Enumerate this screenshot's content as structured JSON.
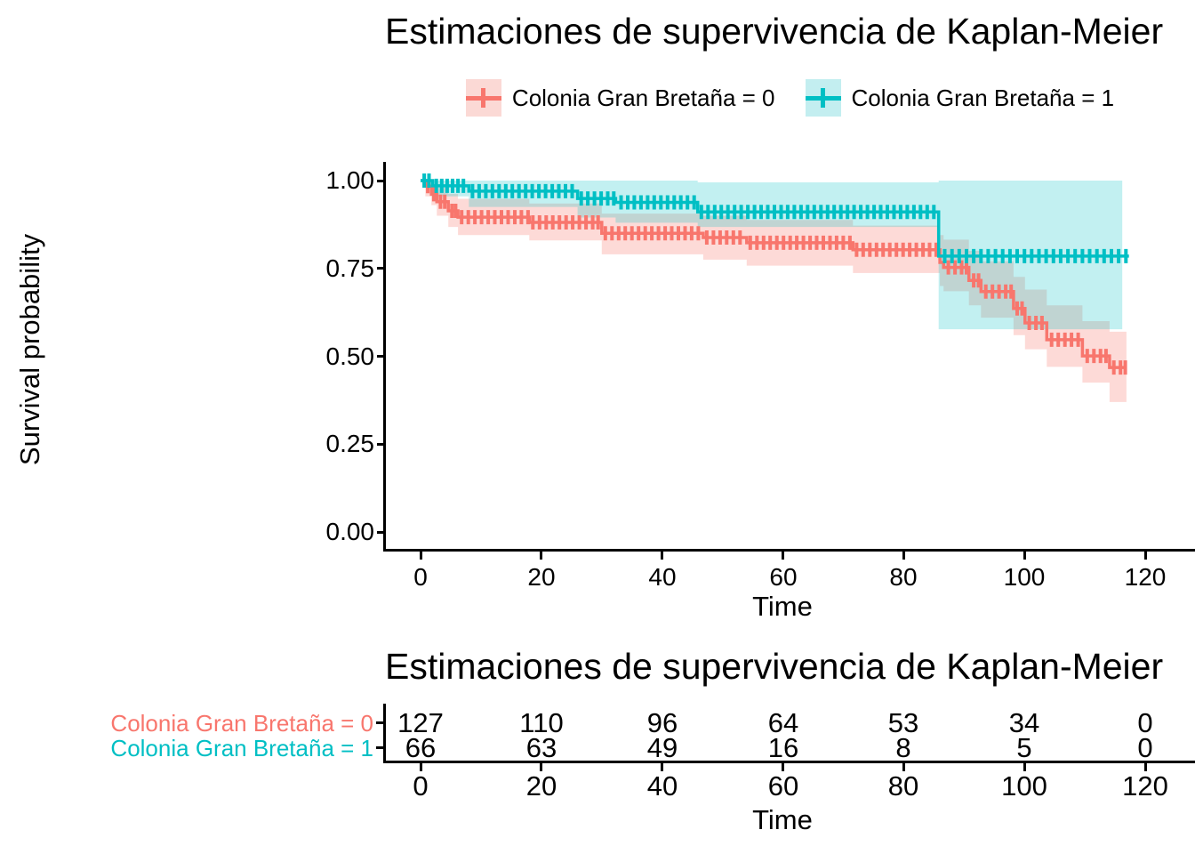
{
  "chart_data": {
    "type": "line",
    "subtype": "kaplan-meier-step",
    "title": "Estimaciones de supervivencia de Kaplan-Meier",
    "xlabel": "Time",
    "ylabel": "Survival probability",
    "xlim": [
      0,
      120
    ],
    "ylim": [
      0.0,
      1.0
    ],
    "grid": false,
    "x_ticks": [
      {
        "v": 0,
        "label": "0"
      },
      {
        "v": 20,
        "label": "20"
      },
      {
        "v": 40,
        "label": "40"
      },
      {
        "v": 60,
        "label": "60"
      },
      {
        "v": 80,
        "label": "80"
      },
      {
        "v": 100,
        "label": "100"
      },
      {
        "v": 120,
        "label": "120"
      }
    ],
    "y_ticks": [
      {
        "v": 1.0,
        "label": "1.00"
      },
      {
        "v": 0.75,
        "label": "0.75"
      },
      {
        "v": 0.5,
        "label": "0.50"
      },
      {
        "v": 0.25,
        "label": "0.25"
      },
      {
        "v": 0.0,
        "label": "0.00"
      }
    ],
    "legend": {
      "position": "top",
      "items": [
        {
          "label": "Colonia Gran Bretaña = 0",
          "color": "#F8766D",
          "fill": "#FBD9D5"
        },
        {
          "label": "Colonia Gran Bretaña = 1",
          "color": "#00BFC4",
          "fill": "#C3EEF0"
        }
      ]
    },
    "series": [
      {
        "name": "Colonia Gran Bretaña = 0",
        "color": "#F8766D",
        "band_alpha": 0.27,
        "steps": [
          [
            0,
            1.0
          ],
          [
            0.8,
            0.984
          ],
          [
            1.8,
            0.961
          ],
          [
            2.7,
            0.94
          ],
          [
            4.6,
            0.914
          ],
          [
            6.2,
            0.896
          ],
          [
            18,
            0.881
          ],
          [
            30,
            0.85
          ],
          [
            46.8,
            0.838
          ],
          [
            54,
            0.823
          ],
          [
            71.6,
            0.803
          ],
          [
            86,
            0.767
          ],
          [
            86.6,
            0.753
          ],
          [
            90.8,
            0.716
          ],
          [
            92.8,
            0.684
          ],
          [
            98.2,
            0.636
          ],
          [
            100.1,
            0.595
          ],
          [
            103.7,
            0.547
          ],
          [
            109.6,
            0.501
          ],
          [
            114.1,
            0.468
          ],
          [
            116.9,
            0.468
          ]
        ],
        "ci": [
          [
            0,
            1.0,
            1.0
          ],
          [
            0.8,
            0.955,
            0.998
          ],
          [
            1.8,
            0.93,
            0.99
          ],
          [
            2.7,
            0.9,
            0.98
          ],
          [
            4.6,
            0.868,
            0.962
          ],
          [
            6.2,
            0.845,
            0.948
          ],
          [
            18,
            0.83,
            0.935
          ],
          [
            30,
            0.79,
            0.906
          ],
          [
            46.8,
            0.775,
            0.9
          ],
          [
            54,
            0.758,
            0.888
          ],
          [
            71.6,
            0.737,
            0.872
          ],
          [
            86,
            0.7,
            0.845
          ],
          [
            86.6,
            0.685,
            0.832
          ],
          [
            90.8,
            0.645,
            0.8
          ],
          [
            92.8,
            0.61,
            0.77
          ],
          [
            98.2,
            0.56,
            0.726
          ],
          [
            100.1,
            0.52,
            0.69
          ],
          [
            103.7,
            0.47,
            0.645
          ],
          [
            109.6,
            0.425,
            0.6
          ],
          [
            114.1,
            0.37,
            0.57
          ],
          [
            116.9,
            0.37,
            0.57
          ]
        ],
        "censor_times": [
          1.2,
          2.2,
          3.3,
          4.0,
          5.2,
          5.8,
          6.8,
          7.9,
          9.0,
          10.1,
          11.2,
          12.3,
          13.4,
          14.5,
          15.6,
          16.7,
          17.8,
          18.6,
          19.7,
          20.8,
          21.9,
          23.0,
          24.1,
          25.2,
          26.3,
          27.4,
          28.5,
          29.4,
          30.6,
          31.7,
          32.8,
          33.9,
          35.0,
          36.1,
          37.2,
          38.3,
          39.4,
          40.5,
          41.6,
          42.7,
          43.8,
          44.9,
          46.0,
          47.4,
          48.5,
          49.6,
          50.7,
          51.8,
          52.9,
          54.6,
          55.7,
          56.8,
          57.9,
          59.0,
          60.1,
          61.2,
          62.3,
          63.4,
          64.5,
          65.6,
          66.7,
          67.8,
          68.9,
          70.0,
          71.1,
          72.2,
          73.3,
          74.4,
          75.5,
          76.6,
          77.7,
          78.8,
          79.9,
          81.0,
          82.1,
          83.2,
          84.3,
          85.4,
          87.4,
          88.5,
          89.6,
          90.4,
          91.6,
          92.4,
          93.6,
          94.7,
          95.8,
          96.9,
          97.8,
          98.8,
          99.6,
          100.8,
          101.9,
          102.9,
          104.5,
          105.6,
          106.7,
          107.8,
          108.9,
          110.4,
          111.5,
          112.6,
          113.5,
          114.8,
          115.9,
          116.7
        ]
      },
      {
        "name": "Colonia Gran Bretaña = 1",
        "color": "#00BFC4",
        "band_alpha": 0.24,
        "steps": [
          [
            0,
            1.0
          ],
          [
            2,
            0.985
          ],
          [
            8,
            0.97
          ],
          [
            26,
            0.949
          ],
          [
            32.3,
            0.938
          ],
          [
            45.9,
            0.911
          ],
          [
            85.8,
            0.785
          ],
          [
            117.3,
            0.785
          ]
        ],
        "ci": [
          [
            0,
            1.0,
            1.0
          ],
          [
            2,
            0.955,
            1.0
          ],
          [
            8,
            0.925,
            1.0
          ],
          [
            26,
            0.895,
            1.0
          ],
          [
            32.3,
            0.88,
            1.0
          ],
          [
            45.9,
            0.868,
            0.995
          ],
          [
            85.8,
            0.577,
            1.0
          ],
          [
            116.2,
            0.577,
            1.0
          ]
        ],
        "censor_times": [
          0.6,
          1.4,
          2.6,
          3.5,
          4.4,
          5.3,
          6.2,
          7.1,
          8.6,
          9.7,
          10.8,
          11.9,
          13.0,
          14.1,
          15.2,
          16.3,
          17.4,
          18.5,
          19.6,
          20.7,
          21.8,
          22.9,
          24.0,
          25.1,
          26.6,
          27.7,
          28.8,
          29.9,
          31.0,
          32.0,
          33.2,
          34.3,
          35.4,
          36.5,
          37.6,
          38.7,
          39.8,
          40.9,
          42.0,
          43.1,
          44.2,
          45.3,
          46.5,
          47.6,
          48.7,
          49.8,
          50.9,
          52.0,
          53.1,
          54.2,
          55.3,
          56.4,
          57.5,
          58.6,
          59.7,
          60.8,
          61.9,
          63.0,
          64.1,
          65.2,
          66.3,
          67.4,
          68.5,
          69.6,
          70.7,
          71.8,
          72.9,
          74.0,
          75.1,
          76.2,
          77.3,
          78.4,
          79.5,
          80.6,
          81.7,
          82.8,
          83.9,
          85.0,
          86.8,
          88.0,
          89.2,
          90.4,
          91.6,
          92.8,
          94.0,
          95.2,
          96.4,
          97.6,
          98.8,
          100.0,
          101.2,
          102.4,
          103.6,
          104.8,
          106.0,
          107.2,
          108.4,
          109.6,
          110.8,
          112.0,
          113.2,
          114.4,
          115.6,
          116.8
        ]
      }
    ]
  },
  "risk_table": {
    "title": "Estimaciones de supervivencia de Kaplan-Meier",
    "xlabel": "Time",
    "x_ticks": [
      {
        "v": 0,
        "label": "0"
      },
      {
        "v": 20,
        "label": "20"
      },
      {
        "v": 40,
        "label": "40"
      },
      {
        "v": 60,
        "label": "60"
      },
      {
        "v": 80,
        "label": "80"
      },
      {
        "v": 100,
        "label": "100"
      },
      {
        "v": 120,
        "label": "120"
      }
    ],
    "rows": [
      {
        "label": "Colonia Gran Bretaña = 0",
        "color": "#F8766D",
        "counts": [
          "127",
          "110",
          "96",
          "64",
          "53",
          "34",
          "0"
        ]
      },
      {
        "label": "Colonia Gran Bretaña = 1",
        "color": "#00BFC4",
        "counts": [
          "66",
          "63",
          "49",
          "16",
          "8",
          "5",
          "0"
        ]
      }
    ]
  }
}
